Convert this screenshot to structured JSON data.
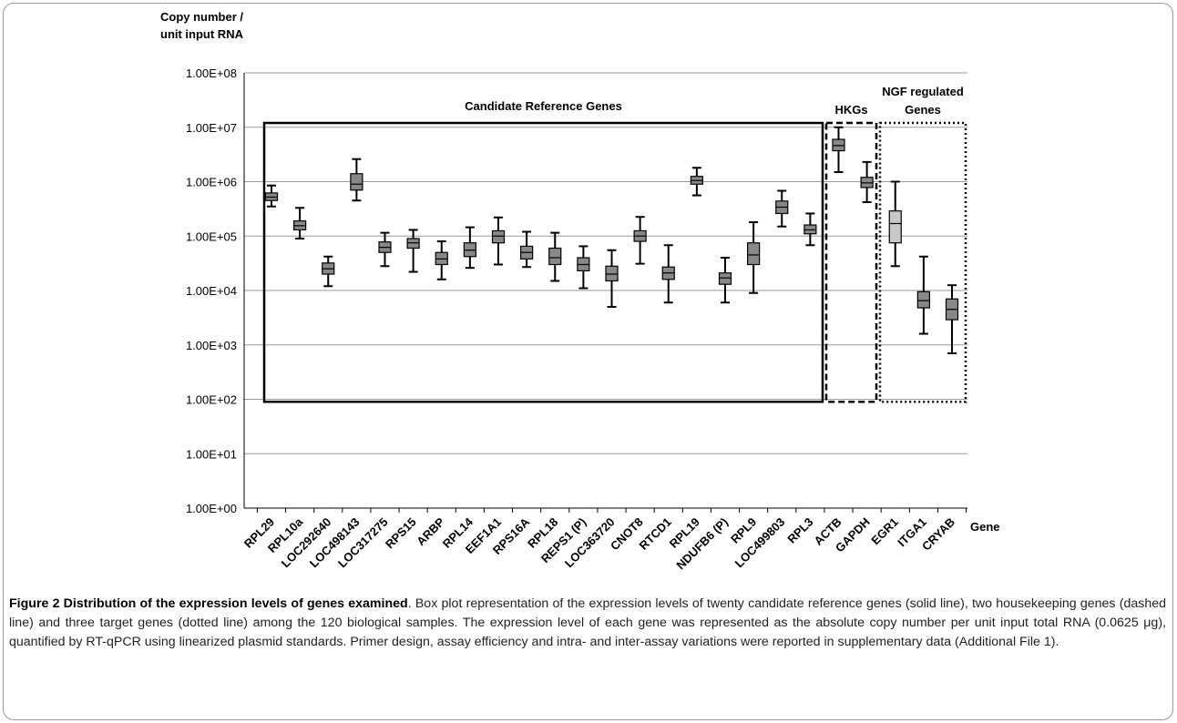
{
  "chart_data": {
    "type": "box",
    "ylabel_line1": "Copy number /",
    "ylabel_line2": "unit input  RNA",
    "xlabel": "Gene",
    "y_scale": "log10",
    "ylim": [
      1,
      100000000
    ],
    "y_ticks": [
      "1.00E+00",
      "1.00E+01",
      "1.00E+02",
      "1.00E+03",
      "1.00E+04",
      "1.00E+05",
      "1.00E+06",
      "1.00E+07",
      "1.00E+08"
    ],
    "grid": true,
    "groups": [
      {
        "label": "Candidate Reference Genes",
        "style": "solid",
        "first": 0,
        "last": 19
      },
      {
        "label_lines": [
          "HKGs"
        ],
        "style": "dashed",
        "first": 20,
        "last": 21
      },
      {
        "label_lines": [
          "NGF regulated",
          "Genes"
        ],
        "style": "dotted",
        "first": 22,
        "last": 24
      }
    ],
    "genes": [
      {
        "name": "RPL29",
        "min": 350000,
        "q1": 450000,
        "median": 520000,
        "q3": 620000,
        "max": 850000,
        "color": "#888888"
      },
      {
        "name": "RPL10a",
        "min": 90000,
        "q1": 130000,
        "median": 155000,
        "q3": 190000,
        "max": 330000,
        "color": "#888888"
      },
      {
        "name": "LOC292640",
        "min": 12000,
        "q1": 20000,
        "median": 25000,
        "q3": 32000,
        "max": 42000,
        "color": "#888888"
      },
      {
        "name": "LOC498143",
        "min": 450000,
        "q1": 700000,
        "median": 900000,
        "q3": 1400000,
        "max": 2600000,
        "color": "#888888"
      },
      {
        "name": "LOC317275",
        "min": 28000,
        "q1": 50000,
        "median": 62000,
        "q3": 78000,
        "max": 115000,
        "color": "#888888"
      },
      {
        "name": "RPS15",
        "min": 22000,
        "q1": 60000,
        "median": 75000,
        "q3": 90000,
        "max": 130000,
        "color": "#888888"
      },
      {
        "name": "ARBP",
        "min": 16000,
        "q1": 30000,
        "median": 38000,
        "q3": 50000,
        "max": 80000,
        "color": "#888888"
      },
      {
        "name": "RPL14",
        "min": 26000,
        "q1": 42000,
        "median": 55000,
        "q3": 75000,
        "max": 145000,
        "color": "#888888"
      },
      {
        "name": "EEF1A1",
        "min": 30000,
        "q1": 75000,
        "median": 100000,
        "q3": 125000,
        "max": 220000,
        "color": "#888888"
      },
      {
        "name": "RPS16A",
        "min": 27000,
        "q1": 38000,
        "median": 50000,
        "q3": 65000,
        "max": 120000,
        "color": "#888888"
      },
      {
        "name": "RPL18",
        "min": 15000,
        "q1": 30000,
        "median": 40000,
        "q3": 60000,
        "max": 115000,
        "color": "#888888"
      },
      {
        "name": "REPS1 (P)",
        "min": 11000,
        "q1": 23000,
        "median": 30000,
        "q3": 40000,
        "max": 65000,
        "color": "#888888"
      },
      {
        "name": "LOC363720",
        "min": 5000,
        "q1": 15000,
        "median": 20000,
        "q3": 28000,
        "max": 55000,
        "color": "#888888"
      },
      {
        "name": "CNOT8",
        "min": 31000,
        "q1": 80000,
        "median": 100000,
        "q3": 125000,
        "max": 225000,
        "color": "#888888"
      },
      {
        "name": "RTCD1",
        "min": 6000,
        "q1": 16000,
        "median": 21000,
        "q3": 27000,
        "max": 68000,
        "color": "#888888"
      },
      {
        "name": "RPL19",
        "min": 560000,
        "q1": 900000,
        "median": 1050000,
        "q3": 1250000,
        "max": 1800000,
        "color": "#888888"
      },
      {
        "name": "NDUFB6 (P)",
        "min": 6000,
        "q1": 13000,
        "median": 17000,
        "q3": 21000,
        "max": 40000,
        "color": "#888888"
      },
      {
        "name": "RPL9",
        "min": 9000,
        "q1": 30000,
        "median": 45000,
        "q3": 75000,
        "max": 180000,
        "color": "#888888"
      },
      {
        "name": "LOC499803",
        "min": 150000,
        "q1": 260000,
        "median": 340000,
        "q3": 440000,
        "max": 680000,
        "color": "#888888"
      },
      {
        "name": "RPL3",
        "min": 68000,
        "q1": 110000,
        "median": 130000,
        "q3": 160000,
        "max": 260000,
        "color": "#888888"
      },
      {
        "name": "ACTB",
        "min": 1500000,
        "q1": 3700000,
        "median": 4600000,
        "q3": 6000000,
        "max": 10000000,
        "color": "#888888"
      },
      {
        "name": "GAPDH",
        "min": 420000,
        "q1": 780000,
        "median": 950000,
        "q3": 1200000,
        "max": 2300000,
        "color": "#888888"
      },
      {
        "name": "EGR1",
        "min": 28000,
        "q1": 75000,
        "median": 170000,
        "q3": 290000,
        "max": 1000000,
        "color": "#c8c8c8"
      },
      {
        "name": "ITGA1",
        "min": 1600,
        "q1": 4800,
        "median": 6500,
        "q3": 9500,
        "max": 42000,
        "color": "#888888"
      },
      {
        "name": "CRYAB",
        "min": 700,
        "q1": 2900,
        "median": 4500,
        "q3": 7000,
        "max": 12500,
        "color": "#888888"
      }
    ]
  },
  "caption": {
    "title": "Figure 2 Distribution of the expression levels of genes examined",
    "body": ". Box plot representation of the expression levels of twenty candidate reference genes (solid line), two housekeeping genes (dashed line) and three target genes (dotted line) among the 120 biological samples. The expression level of each gene was represented as the absolute copy number per unit input total RNA (0.0625 μg), quantified by RT-qPCR using linearized plasmid standards. Primer design, assay efficiency and intra- and inter-assay variations were reported in supplementary data (Additional File 1)."
  }
}
